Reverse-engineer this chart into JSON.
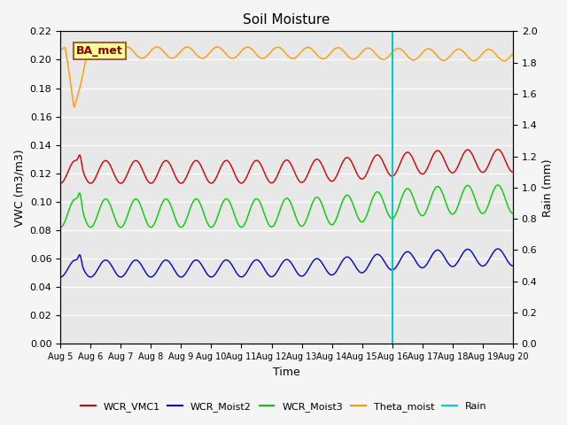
{
  "title": "Soil Moisture",
  "ylabel_left": "VWC (m3/m3)",
  "ylabel_right": "Rain (mm)",
  "xlabel": "Time",
  "ylim_left": [
    0.0,
    0.22
  ],
  "ylim_right": [
    0.0,
    2.0
  ],
  "yticks_left": [
    0.0,
    0.02,
    0.04,
    0.06,
    0.08,
    0.1,
    0.12,
    0.14,
    0.16,
    0.18,
    0.2,
    0.22
  ],
  "yticks_right": [
    0.0,
    0.2,
    0.4,
    0.6,
    0.8,
    1.0,
    1.2,
    1.4,
    1.6,
    1.8,
    2.0
  ],
  "colors": {
    "WCR_VMC1": "#cc0000",
    "WCR_Moist2": "#0000cc",
    "WCR_Moist3": "#00cc00",
    "Theta_moist": "#ff9900",
    "Rain": "#00cccc"
  },
  "annotation_box": {
    "text": "BA_met",
    "facecolor": "#ffff99",
    "edgecolor": "#996633",
    "fontsize": 9
  },
  "rain_event_day": 11.0,
  "background_color": "#e8e8e8",
  "grid_color": "#ffffff",
  "fig_facecolor": "#f5f5f5",
  "day_labels": [
    "Aug 5",
    "Aug 6",
    "Aug 7",
    "Aug 8",
    "Aug 9",
    "Aug 10",
    "Aug 11",
    "Aug 12",
    "Aug 13",
    "Aug 14",
    "Aug 15",
    "Aug 16",
    "Aug 17",
    "Aug 18",
    "Aug 19",
    "Aug 20"
  ],
  "n_days": 15,
  "pts_per_day": 48
}
